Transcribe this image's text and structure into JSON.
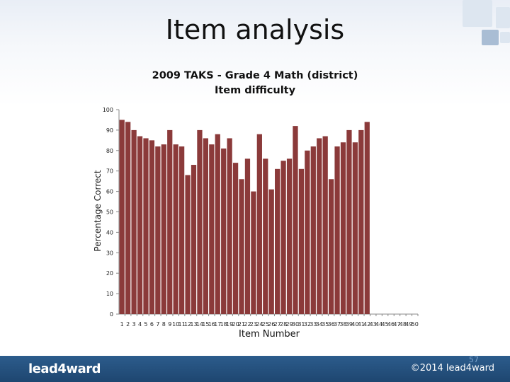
{
  "slide": {
    "title": "Item analysis",
    "page_number": "57",
    "logo": "lead4ward",
    "copyright": "©2014 lead4ward"
  },
  "colors": {
    "bar": "#8B3A3A",
    "accent_blue": "#2c5c8c",
    "square_light": "#dde6f0",
    "square_mid": "#a9bdd4"
  },
  "chart_data": {
    "type": "bar",
    "title": "2009 TAKS - Grade 4 Math (district)",
    "subtitle": "Item difficulty",
    "xlabel": "Item Number",
    "ylabel": "Percentage Correct",
    "ylim": [
      0,
      100
    ],
    "yticks": [
      0,
      10,
      20,
      30,
      40,
      50,
      60,
      70,
      80,
      90,
      100
    ],
    "grid": false,
    "legend": "none",
    "categories": [
      "1",
      "2",
      "3",
      "4",
      "5",
      "6",
      "7",
      "8",
      "9",
      "10",
      "11",
      "12",
      "13",
      "14",
      "15",
      "16",
      "17",
      "18",
      "19",
      "20",
      "21",
      "22",
      "23",
      "24",
      "25",
      "26",
      "27",
      "28",
      "29",
      "30",
      "31",
      "32",
      "33",
      "34",
      "35",
      "36",
      "37",
      "38",
      "39",
      "40",
      "41",
      "42",
      "43",
      "44",
      "45",
      "46",
      "47",
      "48",
      "49",
      "50"
    ],
    "values": [
      95,
      94,
      90,
      87,
      86,
      85,
      82,
      83,
      90,
      83,
      82,
      68,
      73,
      90,
      86,
      83,
      88,
      81,
      86,
      74,
      66,
      76,
      60,
      88,
      76,
      61,
      71,
      75,
      76,
      92,
      71,
      80,
      82,
      86,
      87,
      66,
      82,
      84,
      90,
      84,
      90,
      94,
      null,
      null,
      null,
      null,
      null,
      null,
      null,
      null
    ]
  }
}
